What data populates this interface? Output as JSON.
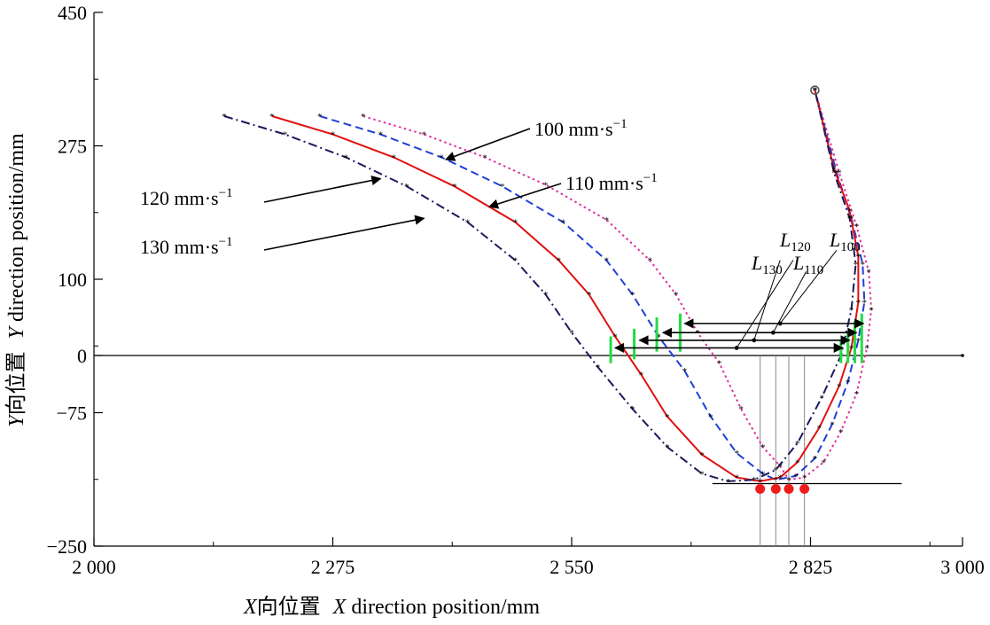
{
  "chart_data": {
    "type": "line",
    "title": "",
    "xlabel_cn_var": "X",
    "xlabel_cn": "向位置",
    "xlabel_en_var": "X",
    "xlabel_en": " direction position/mm",
    "ylabel_cn_var": "Y",
    "ylabel_cn": "向位置",
    "ylabel_en_var": "Y",
    "ylabel_en": " direction position/mm",
    "xlim": [
      2000,
      3000
    ],
    "ylim": [
      -250,
      450
    ],
    "xticks": [
      2000,
      2275,
      2550,
      2825,
      3000
    ],
    "xtick_labels": [
      "2 000",
      "2 275",
      "2 550",
      "2 825",
      "3 000"
    ],
    "yticks": [
      -250,
      -75,
      0,
      100,
      275,
      450
    ],
    "ytick_labels": [
      "−250",
      "−75",
      "0",
      "100",
      "275",
      "450"
    ],
    "start_point": {
      "x": 2830,
      "y": 348
    },
    "series": [
      {
        "name": "100 mm·s",
        "name_sup": "−1",
        "color": "#e0309e",
        "dash": "dot",
        "values": [
          [
            2310,
            314
          ],
          [
            2380,
            290
          ],
          [
            2450,
            260
          ],
          [
            2520,
            224
          ],
          [
            2590,
            178
          ],
          [
            2640,
            125
          ],
          [
            2670,
            80
          ],
          [
            2695,
            30
          ],
          [
            2720,
            -10
          ],
          [
            2745,
            -70
          ],
          [
            2770,
            -120
          ],
          [
            2790,
            -145
          ],
          [
            2800,
            -163
          ],
          [
            2818,
            -160
          ],
          [
            2840,
            -140
          ],
          [
            2860,
            -100
          ],
          [
            2878,
            -50
          ],
          [
            2890,
            10
          ],
          [
            2895,
            60
          ],
          [
            2892,
            110
          ],
          [
            2878,
            170
          ],
          [
            2858,
            240
          ],
          [
            2830,
            348
          ]
        ]
      },
      {
        "name": "110 mm·s",
        "name_sup": "−1",
        "color": "#1f3fd6",
        "dash": "dash",
        "values": [
          [
            2260,
            314
          ],
          [
            2330,
            290
          ],
          [
            2400,
            260
          ],
          [
            2470,
            222
          ],
          [
            2540,
            175
          ],
          [
            2590,
            125
          ],
          [
            2620,
            80
          ],
          [
            2650,
            25
          ],
          [
            2680,
            -20
          ],
          [
            2710,
            -80
          ],
          [
            2740,
            -128
          ],
          [
            2770,
            -155
          ],
          [
            2785,
            -163
          ],
          [
            2808,
            -158
          ],
          [
            2830,
            -135
          ],
          [
            2850,
            -90
          ],
          [
            2868,
            -35
          ],
          [
            2880,
            20
          ],
          [
            2887,
            70
          ],
          [
            2885,
            120
          ],
          [
            2872,
            180
          ],
          [
            2855,
            240
          ],
          [
            2830,
            348
          ]
        ]
      },
      {
        "name": "120 mm·s",
        "name_sup": "−1",
        "color": "#e01010",
        "dash": "solid",
        "values": [
          [
            2205,
            314
          ],
          [
            2275,
            290
          ],
          [
            2345,
            260
          ],
          [
            2415,
            222
          ],
          [
            2485,
            175
          ],
          [
            2535,
            125
          ],
          [
            2570,
            80
          ],
          [
            2600,
            25
          ],
          [
            2630,
            -25
          ],
          [
            2660,
            -80
          ],
          [
            2700,
            -130
          ],
          [
            2740,
            -160
          ],
          [
            2767,
            -165
          ],
          [
            2790,
            -160
          ],
          [
            2810,
            -140
          ],
          [
            2835,
            -95
          ],
          [
            2858,
            -40
          ],
          [
            2872,
            10
          ],
          [
            2880,
            70
          ],
          [
            2880,
            130
          ],
          [
            2870,
            190
          ],
          [
            2852,
            245
          ],
          [
            2830,
            348
          ]
        ]
      },
      {
        "name": "130 mm·s",
        "name_sup": "−1",
        "color": "#1a1a5e",
        "dash": "dashdot",
        "values": [
          [
            2150,
            314
          ],
          [
            2220,
            290
          ],
          [
            2290,
            260
          ],
          [
            2360,
            222
          ],
          [
            2430,
            175
          ],
          [
            2485,
            125
          ],
          [
            2520,
            80
          ],
          [
            2550,
            30
          ],
          [
            2580,
            -15
          ],
          [
            2620,
            -70
          ],
          [
            2660,
            -120
          ],
          [
            2700,
            -155
          ],
          [
            2730,
            -165
          ],
          [
            2760,
            -163
          ],
          [
            2785,
            -150
          ],
          [
            2810,
            -115
          ],
          [
            2838,
            -55
          ],
          [
            2860,
            0
          ],
          [
            2872,
            60
          ],
          [
            2877,
            120
          ],
          [
            2870,
            180
          ],
          [
            2852,
            240
          ],
          [
            2830,
            348
          ]
        ]
      }
    ],
    "annotations": [
      {
        "text": "100 mm·s",
        "sup": "−1",
        "target": [
          2405,
          257
        ]
      },
      {
        "text": "110 mm·s",
        "sup": "−1",
        "target": [
          2455,
          195
        ]
      },
      {
        "text": "120 mm·s",
        "sup": "−1",
        "target": [
          2330,
          232
        ]
      },
      {
        "text": "130 mm·s",
        "sup": "−1",
        "target": [
          2380,
          180
        ]
      }
    ],
    "distance_labels": [
      {
        "base": "L",
        "sub": "120"
      },
      {
        "base": "L",
        "sub": "100"
      },
      {
        "base": "L",
        "sub": "130"
      },
      {
        "base": "L",
        "sub": "110"
      }
    ],
    "bottom_points_x": [
      2767,
      2785,
      2800,
      2818
    ],
    "grid": false,
    "legend": "annotations"
  }
}
